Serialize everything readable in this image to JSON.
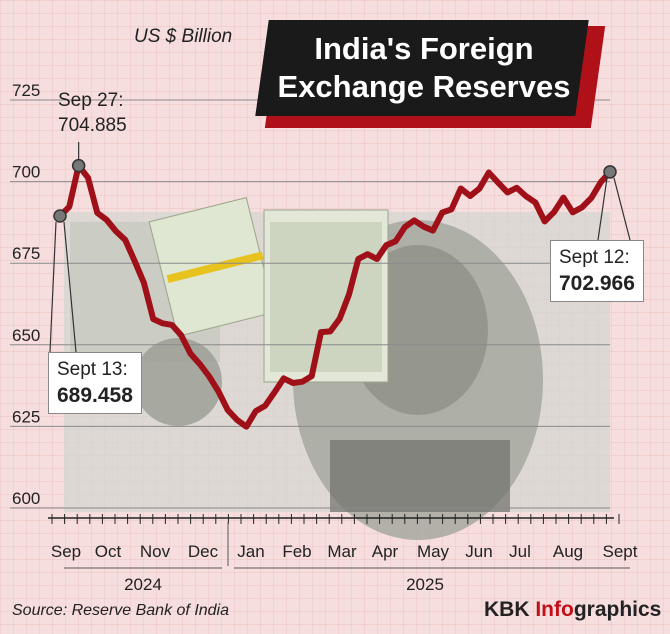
{
  "header": {
    "title_line1": "India's Foreign",
    "title_line2": "Exchange Reserves",
    "unit": "US $ Billion"
  },
  "chart_data": {
    "type": "line",
    "ylabel": "",
    "xlabel": "",
    "ylim": [
      600,
      725
    ],
    "yticks": [
      600,
      625,
      650,
      675,
      700,
      725
    ],
    "months": [
      "Sep",
      "Oct",
      "Nov",
      "Dec",
      "Jan",
      "Feb",
      "Mar",
      "Apr",
      "May",
      "Jun",
      "Jul",
      "Aug",
      "Sept"
    ],
    "years": [
      "2024",
      "2025"
    ],
    "series": [
      {
        "color": "#a01018",
        "values": [
          689.458,
          692.3,
          704.885,
          701.2,
          690.4,
          688.3,
          684.8,
          682.1,
          675.7,
          669.0,
          657.9,
          656.6,
          656.1,
          652.9,
          647.3,
          644.1,
          640.3,
          635.7,
          630.0,
          627.0,
          624.9,
          629.7,
          631.3,
          635.4,
          639.7,
          638.3,
          638.7,
          640.4,
          653.9,
          654.1,
          658.0,
          665.4,
          676.3,
          677.8,
          676.3,
          680.5,
          681.7,
          686.1,
          688.1,
          686.2,
          685.0,
          690.5,
          691.5,
          697.9,
          695.6,
          697.9,
          702.8,
          699.7,
          696.7,
          698.1,
          695.5,
          693.6,
          687.8,
          690.7,
          695.1,
          690.6,
          692.1,
          695.0,
          699.8,
          702.966
        ]
      }
    ],
    "annotations": [
      {
        "label": "Sep 27:",
        "value": "704.885"
      },
      {
        "label": "Sept 13:",
        "value": "689.458"
      },
      {
        "label": "Sept 12:",
        "value": "702.966"
      }
    ],
    "grid": true
  },
  "footer": {
    "source": "Source: Reserve Bank of India",
    "brand_a": "KBK ",
    "brand_b": "Info",
    "brand_c": "graphics"
  }
}
